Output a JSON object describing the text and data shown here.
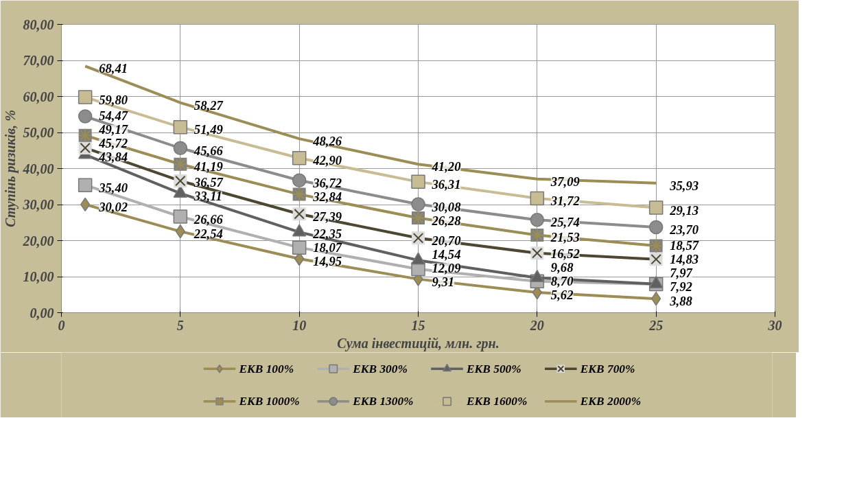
{
  "chart_data": {
    "type": "line",
    "xlabel": "Сума інвестицій, млн. грн.",
    "ylabel": "Ступінь ризиків, %",
    "x": [
      1,
      5,
      10,
      15,
      20,
      25
    ],
    "xlim": [
      0,
      30
    ],
    "xticks": [
      0,
      5,
      10,
      15,
      20,
      25,
      30
    ],
    "ylim": [
      0,
      80
    ],
    "yticks": [
      {
        "value": 0,
        "label": "0,00"
      },
      {
        "value": 10,
        "label": "10,00"
      },
      {
        "value": 20,
        "label": "20,00"
      },
      {
        "value": 30,
        "label": "30,00"
      },
      {
        "value": 40,
        "label": "40,00"
      },
      {
        "value": 50,
        "label": "50,00"
      },
      {
        "value": 60,
        "label": "60,00"
      },
      {
        "value": 70,
        "label": "70,00"
      },
      {
        "value": 80,
        "label": "80,00"
      }
    ],
    "grid": true,
    "legend": "bottom",
    "series": [
      {
        "name": "ЕКВ 100%",
        "color": "#9b8d55",
        "marker": "diamond",
        "values": [
          30.02,
          22.54,
          14.95,
          9.31,
          5.62,
          3.88
        ],
        "value_labels": [
          "30,02",
          "22,54",
          "14,95",
          "9,31",
          "5,62",
          "3,88"
        ]
      },
      {
        "name": "ЕКВ 300%",
        "color": "#b0b0b0",
        "marker": "square",
        "values": [
          35.4,
          26.66,
          18.07,
          12.09,
          8.7,
          7.92
        ],
        "value_labels": [
          "35,40",
          "26,66",
          "18,07",
          "12,09",
          "8,70",
          "7,92"
        ]
      },
      {
        "name": "ЕКВ 500%",
        "color": "#606060",
        "marker": "triangle",
        "values": [
          43.84,
          33.11,
          22.35,
          14.54,
          9.68,
          7.97
        ],
        "value_labels": [
          "43,84",
          "33,11",
          "22,35",
          "14,54",
          "9,68",
          "7,97"
        ]
      },
      {
        "name": "ЕКВ 700%",
        "color": "#4d4732",
        "marker": "x",
        "values": [
          45.72,
          36.57,
          27.39,
          20.7,
          16.52,
          14.83
        ],
        "value_labels": [
          "45,72",
          "36,57",
          "27,39",
          "20,70",
          "16,52",
          "14,83"
        ]
      },
      {
        "name": "ЕКВ 1000%",
        "color": "#9b8d55",
        "marker": "cross",
        "values": [
          49.17,
          41.19,
          32.84,
          26.28,
          21.53,
          18.57
        ],
        "value_labels": [
          "49,17",
          "41,19",
          "32,84",
          "26,28",
          "21,53",
          "18,57"
        ]
      },
      {
        "name": "ЕКВ 1300%",
        "color": "#8c8c8c",
        "marker": "circle",
        "values": [
          54.47,
          45.66,
          36.72,
          30.08,
          25.74,
          23.7
        ],
        "value_labels": [
          "54,47",
          "45,66",
          "36,72",
          "30,08",
          "25,74",
          "23,70"
        ]
      },
      {
        "name": "ЕКВ 1600%",
        "color": "#c8bc94",
        "marker": "square",
        "values": [
          59.8,
          51.49,
          42.9,
          36.31,
          31.72,
          29.13
        ],
        "value_labels": [
          "59,80",
          "51,49",
          "42,90",
          "36,31",
          "31,72",
          "29,13"
        ]
      },
      {
        "name": "ЕКВ 2000%",
        "color": "#9b8d55",
        "marker": "none",
        "values": [
          68.41,
          58.27,
          48.26,
          41.2,
          37.09,
          35.93
        ],
        "value_labels": [
          "68,41",
          "58,27",
          "48,26",
          "41,20",
          "37,09",
          "35,93"
        ]
      }
    ]
  }
}
